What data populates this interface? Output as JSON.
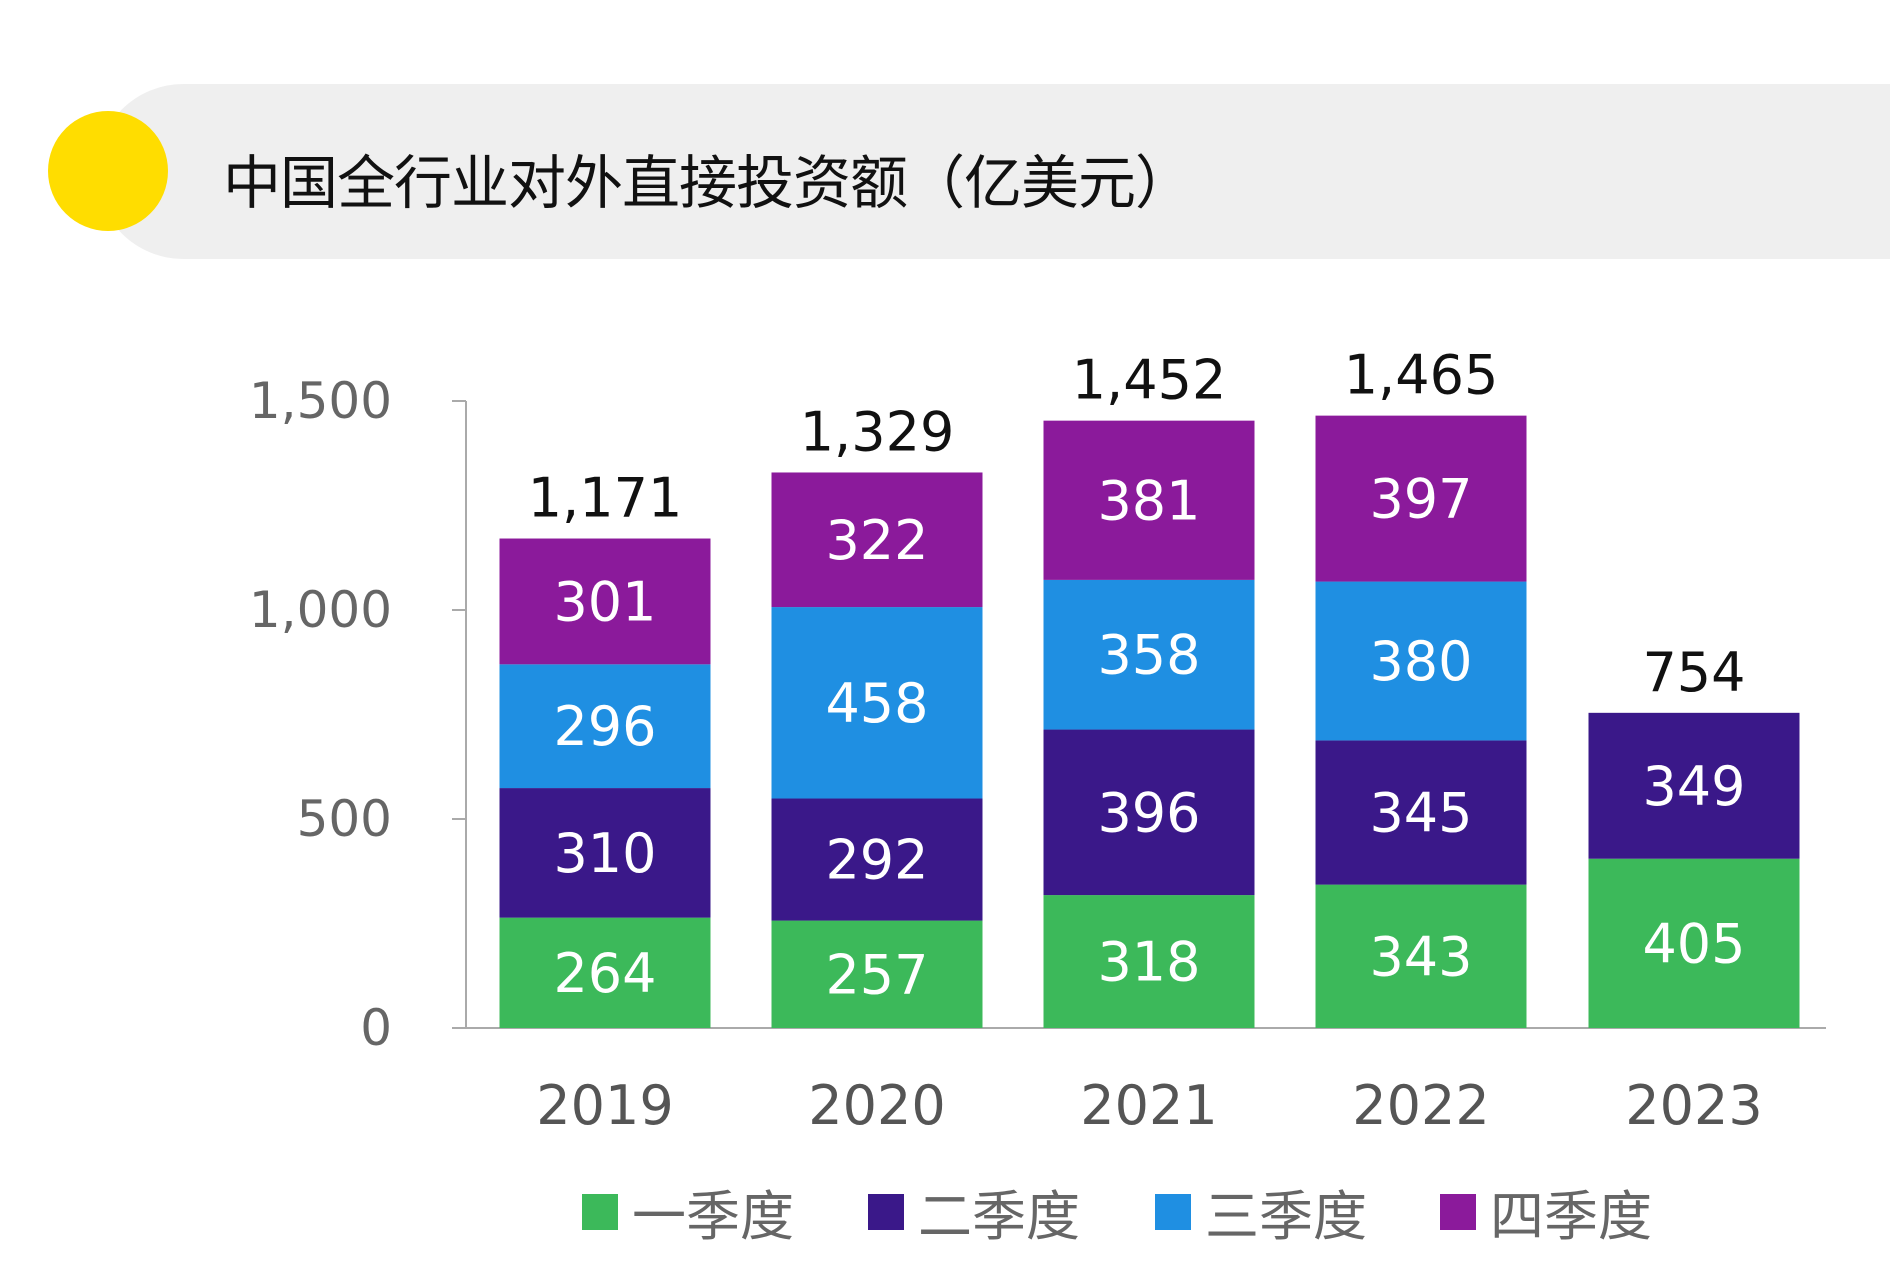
{
  "header": {
    "title": "中国全行业对外直接投资额（亿美元）",
    "accent_color": "#ffdd00"
  },
  "chart_data": {
    "type": "bar",
    "stacked": true,
    "title": "中国全行业对外直接投资额（亿美元）",
    "categories": [
      "2019",
      "2020",
      "2021",
      "2022",
      "2023"
    ],
    "series": [
      {
        "name": "一季度",
        "color": "#3cb95a",
        "values": [
          264,
          257,
          318,
          343,
          405
        ]
      },
      {
        "name": "二季度",
        "color": "#3a1889",
        "values": [
          310,
          292,
          396,
          345,
          349
        ]
      },
      {
        "name": "三季度",
        "color": "#1f8fe2",
        "values": [
          296,
          458,
          358,
          380,
          null
        ]
      },
      {
        "name": "四季度",
        "color": "#8b1a9b",
        "values": [
          301,
          322,
          381,
          397,
          null
        ]
      }
    ],
    "totals": [
      "1,171",
      "1,329",
      "1,452",
      "1,465",
      "754"
    ],
    "yticks": [
      "0",
      "500",
      "1,000",
      "1,500"
    ],
    "ylim": [
      0,
      1500
    ],
    "grid": false,
    "legend": "bottom"
  }
}
